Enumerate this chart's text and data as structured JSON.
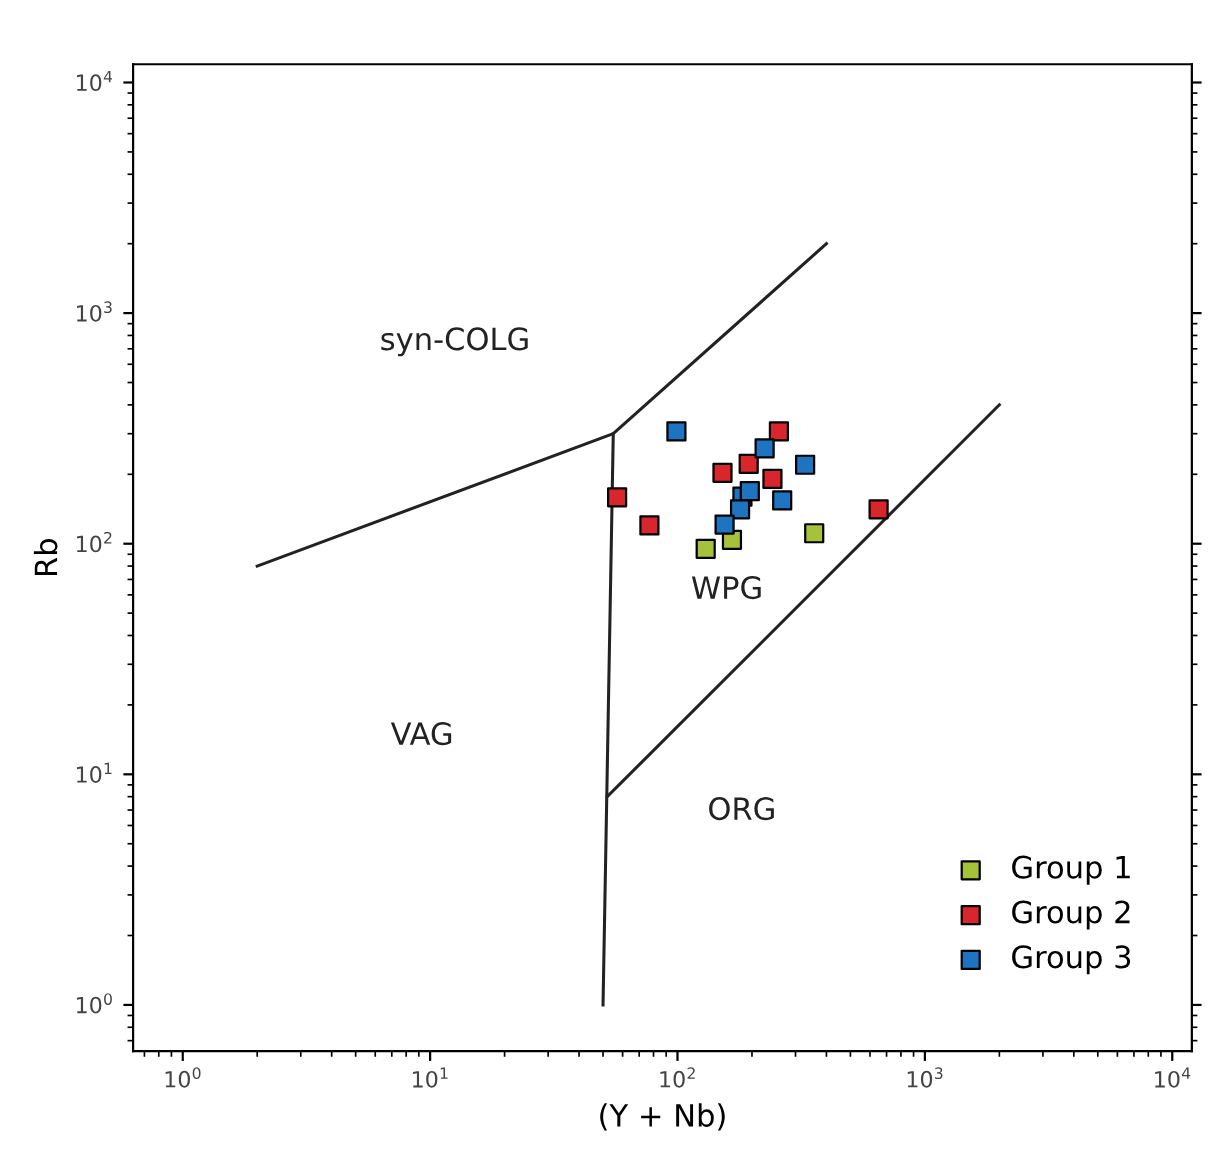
{
  "chart_data": {
    "type": "scatter",
    "xlabel": "(Y + Nb)",
    "ylabel": "Rb",
    "log": "xy",
    "grid": false,
    "legend": "bottom right",
    "xlim": [
      0.63,
      12000
    ],
    "ylim": [
      0.63,
      12000
    ],
    "xticks": [
      {
        "value": 1,
        "label": "10$^{0}$"
      },
      {
        "value": 10,
        "label": "10$^{1}$"
      },
      {
        "value": 100,
        "label": "10$^{2}$"
      },
      {
        "value": 1000,
        "label": "10$^{3}$"
      },
      {
        "value": 10000,
        "label": "10$^{4}$"
      }
    ],
    "yticks": [
      {
        "value": 1,
        "label": "10$^{0}$"
      },
      {
        "value": 10,
        "label": "10$^{1}$"
      },
      {
        "value": 100,
        "label": "10$^{2}$"
      },
      {
        "value": 1000,
        "label": "10$^{3}$"
      },
      {
        "value": 10000,
        "label": "10$^{4}$"
      }
    ],
    "series": [
      {
        "name": "Group 1",
        "marker": "square",
        "color": "#a4c23a",
        "x": [
          130,
          166,
          357
        ],
        "values": [
          95,
          104,
          111
        ]
      },
      {
        "name": "Group 2",
        "marker": "square",
        "color": "#d8262c",
        "x": [
          57,
          77,
          152,
          194,
          242,
          257,
          650
        ],
        "values": [
          159,
          120,
          203,
          222,
          191,
          307,
          141
        ]
      },
      {
        "name": "Group 3",
        "marker": "square",
        "color": "#1f74c2",
        "x": [
          99,
          225,
          328,
          183,
          196,
          179,
          155,
          265
        ],
        "values": [
          307,
          259,
          220,
          160,
          169,
          141,
          121,
          154
        ]
      },
      {
        "type": "line",
        "color": "#222222",
        "x": [
          2,
          55,
          400
        ],
        "values": [
          80,
          300,
          2000
        ]
      },
      {
        "type": "line",
        "color": "#222222",
        "x": [
          50,
          55
        ],
        "values": [
          1,
          300
        ]
      },
      {
        "type": "line",
        "color": "#222222",
        "x": [
          52,
          2000
        ],
        "values": [
          8,
          400
        ]
      }
    ],
    "annotations": [
      "syn-COLG",
      "VAG",
      "WPG",
      "ORG"
    ]
  }
}
